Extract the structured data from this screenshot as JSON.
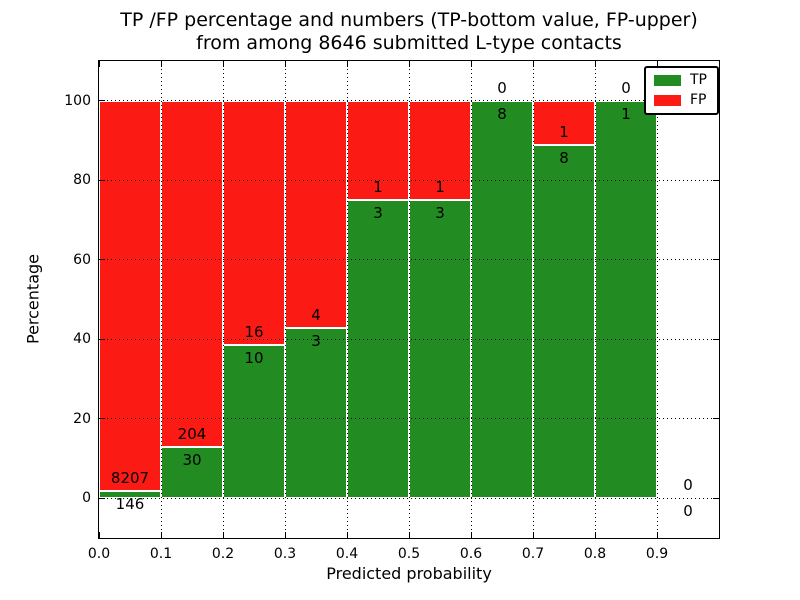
{
  "title": {
    "line1": "TP /FP percentage and numbers (TP-bottom value, FP-upper)",
    "line2": "from among 8646 submitted L-type contacts"
  },
  "chart_data": {
    "type": "bar",
    "stacked": true,
    "normalized_to_percent": true,
    "title": "TP /FP percentage and numbers (TP-bottom value, FP-upper) from among 8646 submitted L-type contacts",
    "xlabel": "Predicted probability",
    "ylabel": "Percentage",
    "total_submitted_contacts": 8646,
    "categories": [
      "0.0-0.1",
      "0.1-0.2",
      "0.2-0.3",
      "0.3-0.4",
      "0.4-0.5",
      "0.5-0.6",
      "0.6-0.7",
      "0.7-0.8",
      "0.8-0.9",
      "0.9-1.0"
    ],
    "series": [
      {
        "name": "TP",
        "color": "#228b22",
        "counts": [
          146,
          30,
          10,
          3,
          3,
          3,
          8,
          8,
          1,
          0
        ],
        "percent_of_bin": [
          1.75,
          12.82,
          38.46,
          42.86,
          75.0,
          75.0,
          100.0,
          88.89,
          100.0,
          0.0
        ]
      },
      {
        "name": "FP",
        "color": "#fc1b14",
        "counts": [
          8207,
          204,
          16,
          4,
          1,
          1,
          0,
          1,
          0,
          0
        ],
        "percent_of_bin": [
          98.25,
          87.18,
          61.54,
          57.14,
          25.0,
          25.0,
          0.0,
          11.11,
          0.0,
          0.0
        ]
      }
    ],
    "label_convention": "TP count below segment boundary, FP count above segment boundary",
    "ylim": [
      -10,
      110
    ],
    "xlim": [
      0,
      1.0
    ],
    "yticks": [
      0,
      20,
      40,
      60,
      80,
      100
    ],
    "xticks": [
      "0.0",
      "0.1",
      "0.2",
      "0.3",
      "0.4",
      "0.5",
      "0.6",
      "0.7",
      "0.8",
      "0.9"
    ],
    "grid": true,
    "grid_style": "dotted",
    "legend_position": "upper right"
  }
}
